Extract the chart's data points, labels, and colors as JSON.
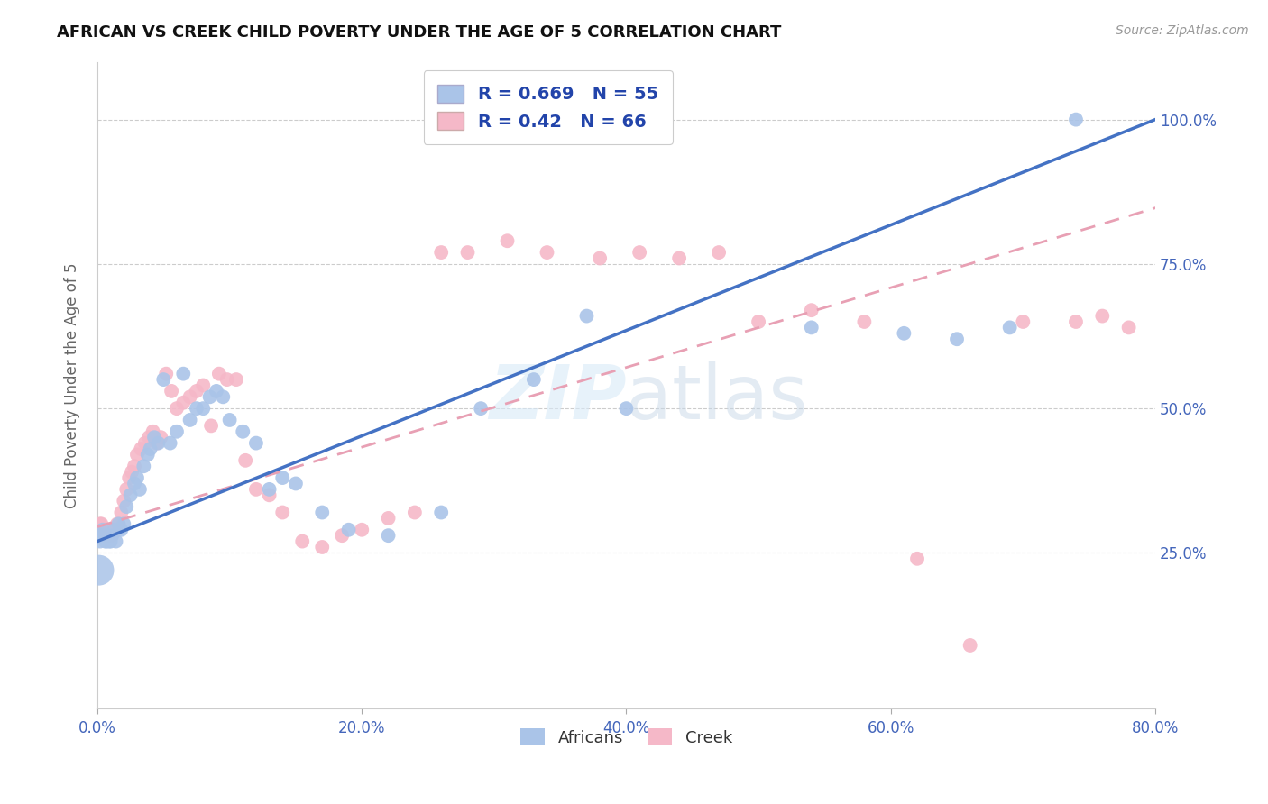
{
  "title": "AFRICAN VS CREEK CHILD POVERTY UNDER THE AGE OF 5 CORRELATION CHART",
  "source": "Source: ZipAtlas.com",
  "ylabel": "Child Poverty Under the Age of 5",
  "xlim": [
    0.0,
    0.8
  ],
  "ylim": [
    -0.02,
    1.1
  ],
  "xtick_labels": [
    "0.0%",
    "20.0%",
    "40.0%",
    "60.0%",
    "80.0%"
  ],
  "xtick_values": [
    0.0,
    0.2,
    0.4,
    0.6,
    0.8
  ],
  "ytick_labels": [
    "25.0%",
    "50.0%",
    "75.0%",
    "100.0%"
  ],
  "ytick_values": [
    0.25,
    0.5,
    0.75,
    1.0
  ],
  "africans_R": 0.669,
  "africans_N": 55,
  "creek_R": 0.42,
  "creek_N": 66,
  "africans_color": "#aac4e8",
  "creek_color": "#f5b8c8",
  "africans_line_color": "#4472c4",
  "creek_line_color": "#e8a0b4",
  "watermark_color": "#ddeeff",
  "watermark": "ZIPatlas",
  "africans_line_intercept": 0.27,
  "africans_line_slope": 0.9125,
  "creek_line_intercept": 0.295,
  "creek_line_slope": 0.69,
  "africans_x": [
    0.001,
    0.002,
    0.003,
    0.004,
    0.005,
    0.006,
    0.007,
    0.008,
    0.009,
    0.01,
    0.011,
    0.013,
    0.014,
    0.016,
    0.018,
    0.02,
    0.022,
    0.025,
    0.028,
    0.03,
    0.032,
    0.035,
    0.038,
    0.04,
    0.043,
    0.046,
    0.05,
    0.055,
    0.06,
    0.065,
    0.07,
    0.075,
    0.08,
    0.085,
    0.09,
    0.095,
    0.1,
    0.11,
    0.12,
    0.13,
    0.14,
    0.15,
    0.17,
    0.19,
    0.22,
    0.26,
    0.29,
    0.33,
    0.37,
    0.4,
    0.54,
    0.61,
    0.65,
    0.69,
    0.74
  ],
  "africans_y": [
    0.28,
    0.27,
    0.28,
    0.29,
    0.28,
    0.27,
    0.27,
    0.28,
    0.27,
    0.27,
    0.28,
    0.29,
    0.27,
    0.3,
    0.29,
    0.3,
    0.33,
    0.35,
    0.37,
    0.38,
    0.36,
    0.4,
    0.42,
    0.43,
    0.45,
    0.44,
    0.55,
    0.44,
    0.46,
    0.56,
    0.48,
    0.5,
    0.5,
    0.52,
    0.53,
    0.52,
    0.48,
    0.46,
    0.44,
    0.36,
    0.38,
    0.37,
    0.32,
    0.29,
    0.28,
    0.32,
    0.5,
    0.55,
    0.66,
    0.5,
    0.64,
    0.63,
    0.62,
    0.64,
    1.0
  ],
  "africans_size": [
    120,
    120,
    120,
    120,
    120,
    120,
    120,
    120,
    120,
    120,
    120,
    120,
    120,
    120,
    120,
    120,
    120,
    120,
    120,
    120,
    120,
    120,
    120,
    120,
    120,
    120,
    120,
    120,
    120,
    120,
    120,
    120,
    120,
    120,
    120,
    120,
    120,
    120,
    120,
    120,
    120,
    120,
    120,
    120,
    120,
    120,
    120,
    120,
    120,
    120,
    120,
    120,
    120,
    120,
    120
  ],
  "africans_size_first": 400,
  "creek_x": [
    0.001,
    0.002,
    0.003,
    0.004,
    0.005,
    0.006,
    0.007,
    0.008,
    0.009,
    0.01,
    0.011,
    0.012,
    0.013,
    0.015,
    0.016,
    0.018,
    0.02,
    0.022,
    0.024,
    0.026,
    0.028,
    0.03,
    0.033,
    0.036,
    0.039,
    0.042,
    0.045,
    0.048,
    0.052,
    0.056,
    0.06,
    0.065,
    0.07,
    0.075,
    0.08,
    0.086,
    0.092,
    0.098,
    0.105,
    0.112,
    0.12,
    0.13,
    0.14,
    0.155,
    0.17,
    0.185,
    0.2,
    0.22,
    0.24,
    0.26,
    0.28,
    0.31,
    0.34,
    0.38,
    0.41,
    0.44,
    0.47,
    0.5,
    0.54,
    0.58,
    0.62,
    0.66,
    0.7,
    0.74,
    0.76,
    0.78
  ],
  "creek_y": [
    0.29,
    0.3,
    0.3,
    0.29,
    0.29,
    0.28,
    0.28,
    0.29,
    0.29,
    0.28,
    0.28,
    0.29,
    0.29,
    0.3,
    0.3,
    0.32,
    0.34,
    0.36,
    0.38,
    0.39,
    0.4,
    0.42,
    0.43,
    0.44,
    0.45,
    0.46,
    0.44,
    0.45,
    0.56,
    0.53,
    0.5,
    0.51,
    0.52,
    0.53,
    0.54,
    0.47,
    0.56,
    0.55,
    0.55,
    0.41,
    0.36,
    0.35,
    0.32,
    0.27,
    0.26,
    0.28,
    0.29,
    0.31,
    0.32,
    0.77,
    0.77,
    0.79,
    0.77,
    0.76,
    0.77,
    0.76,
    0.77,
    0.65,
    0.67,
    0.65,
    0.24,
    0.09,
    0.65,
    0.65,
    0.66,
    0.64
  ]
}
